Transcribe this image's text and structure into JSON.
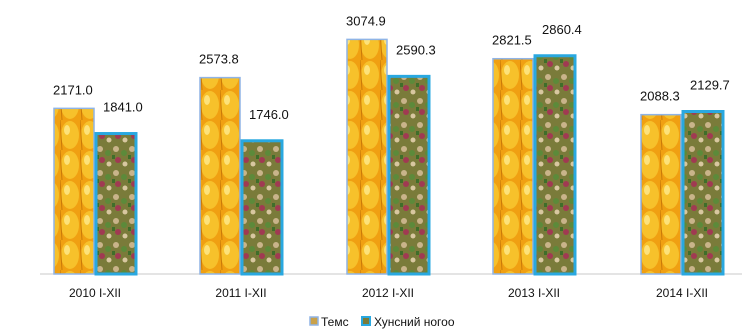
{
  "chart_data": {
    "type": "bar",
    "categories": [
      "2010 I-XII",
      "2011 I-XII",
      "2012 I-XII",
      "2013 I-XII",
      "2014 I-XII"
    ],
    "series": [
      {
        "name": "Темс",
        "values": [
          2171.0,
          2573.8,
          3074.9,
          2821.5,
          2088.3
        ],
        "color": "#8fb4e6"
      },
      {
        "name": "Хунсний ногоо",
        "values": [
          1841.0,
          1746.0,
          2590.3,
          2860.4,
          2129.7
        ],
        "color": "#29a8e0"
      }
    ],
    "value_labels": {
      "Темс": [
        "2171.0",
        "2573.8",
        "3074.9",
        "2821.5",
        "2088.3"
      ],
      "Хунсний ногоо": [
        "1841.0",
        "1746.0",
        "2590.3",
        "2860.4",
        "2129.7"
      ]
    },
    "legend": {
      "placement": "bottom-center",
      "labels": [
        "Темс",
        "Хунсний ногоо"
      ]
    },
    "ylim": [
      0,
      3200
    ],
    "grid": false,
    "fills": {
      "Темс": "yellow-fruit-photo",
      "Хунсний ногоо": "vegetables-photo"
    }
  }
}
